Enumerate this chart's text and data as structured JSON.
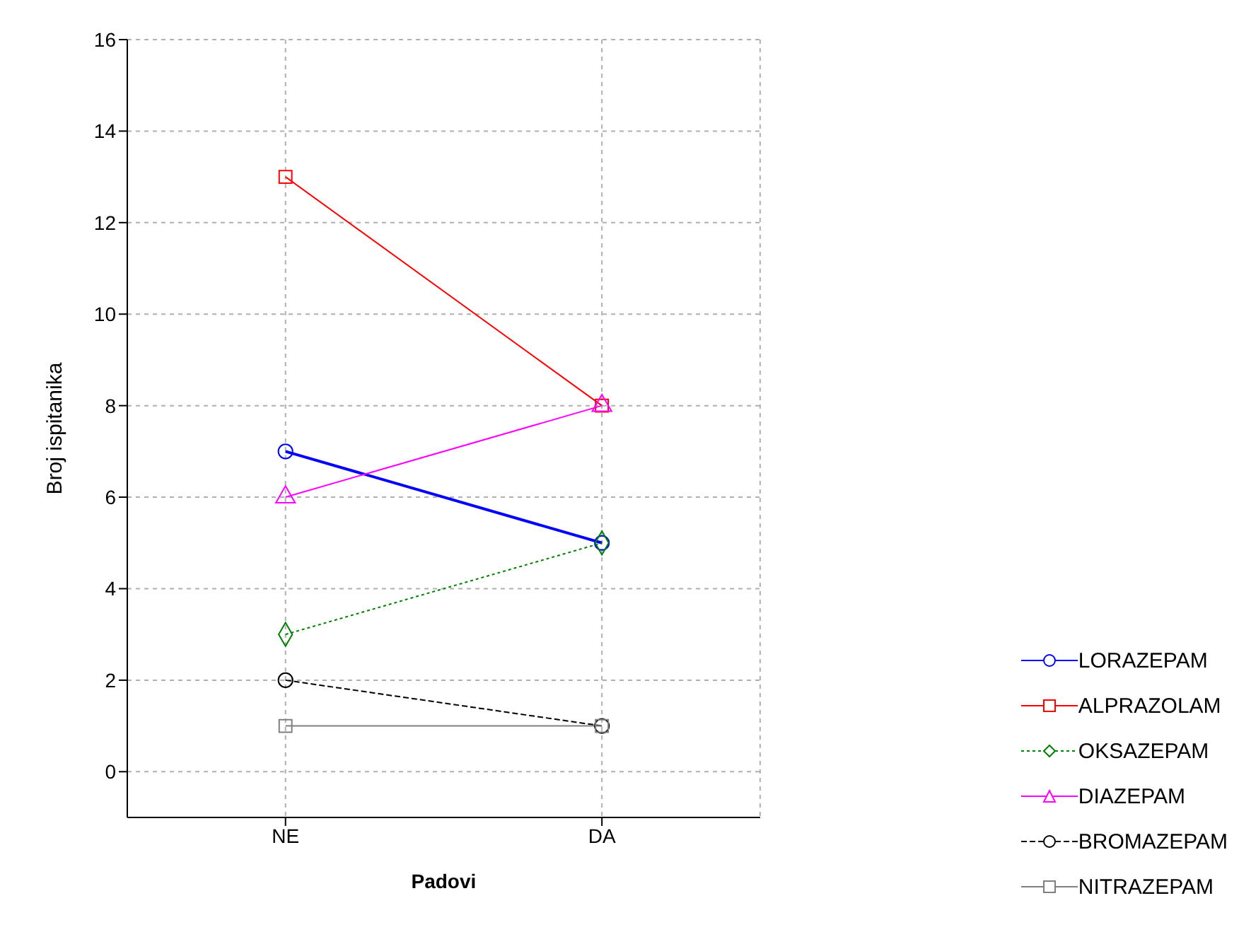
{
  "chart_data": {
    "type": "line",
    "xlabel": "Padovi",
    "ylabel": "Broj ispitanika",
    "categories": [
      "NE",
      "DA"
    ],
    "series": [
      {
        "name": "LORAZEPAM",
        "color": "#0000ff",
        "values": [
          7,
          5
        ],
        "marker": "circle",
        "line_style": "solid"
      },
      {
        "name": "ALPRAZOLAM",
        "color": "#ff0000",
        "values": [
          13,
          8
        ],
        "marker": "square",
        "line_style": "solid"
      },
      {
        "name": "OKSAZEPAM",
        "color": "#008000",
        "values": [
          3,
          5
        ],
        "marker": "diamond",
        "line_style": "dotted"
      },
      {
        "name": "DIAZEPAM",
        "color": "#ff00ff",
        "values": [
          6,
          8
        ],
        "marker": "triangle",
        "line_style": "solid"
      },
      {
        "name": "BROMAZEPAM",
        "color": "#000000",
        "values": [
          2,
          1
        ],
        "marker": "circle",
        "line_style": "dashed"
      },
      {
        "name": "NITRAZEPAM",
        "color": "#808080",
        "values": [
          1,
          1
        ],
        "marker": "square",
        "line_style": "solid"
      }
    ],
    "ylim": [
      -1,
      16
    ],
    "yticks": [
      0,
      2,
      4,
      6,
      8,
      10,
      12,
      14,
      16
    ],
    "grid": true,
    "legend": "bottom right"
  }
}
